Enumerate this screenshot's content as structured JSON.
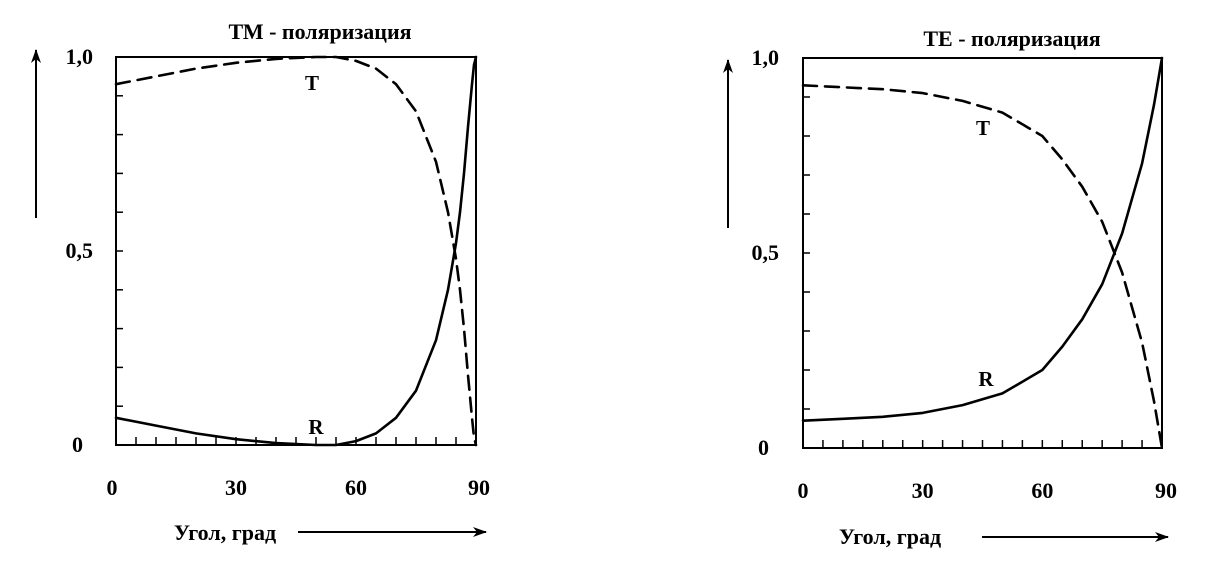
{
  "chart_data": [
    {
      "type": "line",
      "title": "ТМ - поляризация",
      "xlabel": "Угол, град",
      "ylabel": "",
      "xlim": [
        0,
        90
      ],
      "ylim": [
        0,
        1
      ],
      "x_ticks": [
        "0",
        "30",
        "60",
        "90"
      ],
      "y_ticks": [
        "0",
        "0,5",
        "1,0"
      ],
      "series": [
        {
          "name": "T",
          "style": "dashed",
          "x": [
            0,
            10,
            20,
            30,
            40,
            50,
            55,
            60,
            65,
            70,
            75,
            80,
            83,
            85,
            86,
            87,
            88,
            89,
            89.5,
            90
          ],
          "y": [
            0.93,
            0.95,
            0.97,
            0.985,
            0.995,
            1.0,
            1.0,
            0.99,
            0.97,
            0.93,
            0.86,
            0.73,
            0.6,
            0.48,
            0.4,
            0.3,
            0.18,
            0.07,
            0.02,
            0.0
          ]
        },
        {
          "name": "R",
          "style": "solid",
          "x": [
            0,
            10,
            20,
            30,
            40,
            50,
            55,
            60,
            65,
            70,
            75,
            80,
            83,
            85,
            86,
            87,
            88,
            89,
            89.5,
            90
          ],
          "y": [
            0.07,
            0.05,
            0.03,
            0.015,
            0.005,
            0.0,
            0.0,
            0.01,
            0.03,
            0.07,
            0.14,
            0.27,
            0.4,
            0.52,
            0.6,
            0.7,
            0.82,
            0.93,
            0.98,
            1.0
          ]
        }
      ]
    },
    {
      "type": "line",
      "title": "ТЕ - поляризация",
      "xlabel": "Угол, град",
      "ylabel": "",
      "xlim": [
        0,
        90
      ],
      "ylim": [
        0,
        1
      ],
      "x_ticks": [
        "0",
        "30",
        "60",
        "90"
      ],
      "y_ticks": [
        "0",
        "0,5",
        "1,0"
      ],
      "series": [
        {
          "name": "T",
          "style": "dashed",
          "x": [
            0,
            10,
            20,
            30,
            40,
            50,
            55,
            60,
            65,
            70,
            75,
            80,
            85,
            88,
            90
          ],
          "y": [
            0.93,
            0.925,
            0.92,
            0.91,
            0.89,
            0.86,
            0.83,
            0.8,
            0.74,
            0.67,
            0.58,
            0.45,
            0.27,
            0.12,
            0.0
          ]
        },
        {
          "name": "R",
          "style": "solid",
          "x": [
            0,
            10,
            20,
            30,
            40,
            50,
            55,
            60,
            65,
            70,
            75,
            80,
            85,
            88,
            90
          ],
          "y": [
            0.07,
            0.075,
            0.08,
            0.09,
            0.11,
            0.14,
            0.17,
            0.2,
            0.26,
            0.33,
            0.42,
            0.55,
            0.73,
            0.88,
            1.0
          ]
        }
      ]
    }
  ]
}
